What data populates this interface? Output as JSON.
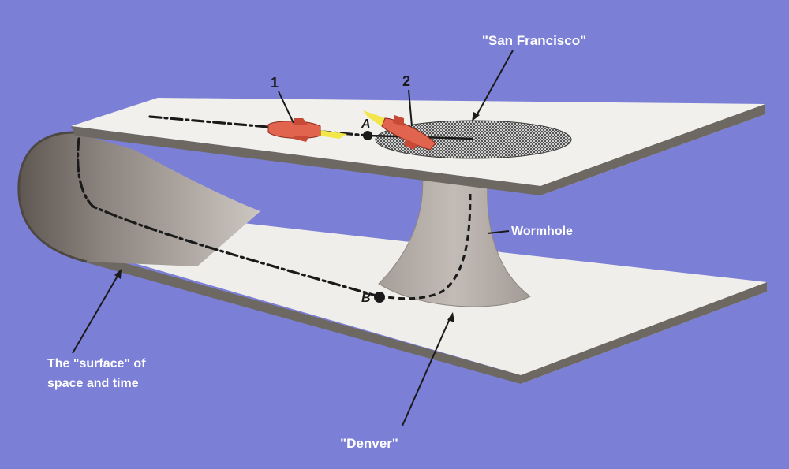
{
  "labels": {
    "san_francisco": "\"San Francisco\"",
    "denver": "\"Denver\"",
    "wormhole": "Wormhole",
    "surface_line1": "The \"surface\" of",
    "surface_line2": "space and time",
    "rocket1": "1",
    "rocket2": "2",
    "point_a": "A",
    "point_b": "B"
  },
  "colors": {
    "background": "#7b7fd6",
    "sheet": "#efeeea",
    "sheet_edge": "#6e6862",
    "throat": "#b9b1ab",
    "rocket": "#e0644e",
    "flame": "#f2e64a",
    "label_text": "#ffffff",
    "annotation_dark": "#1a1a1a"
  }
}
